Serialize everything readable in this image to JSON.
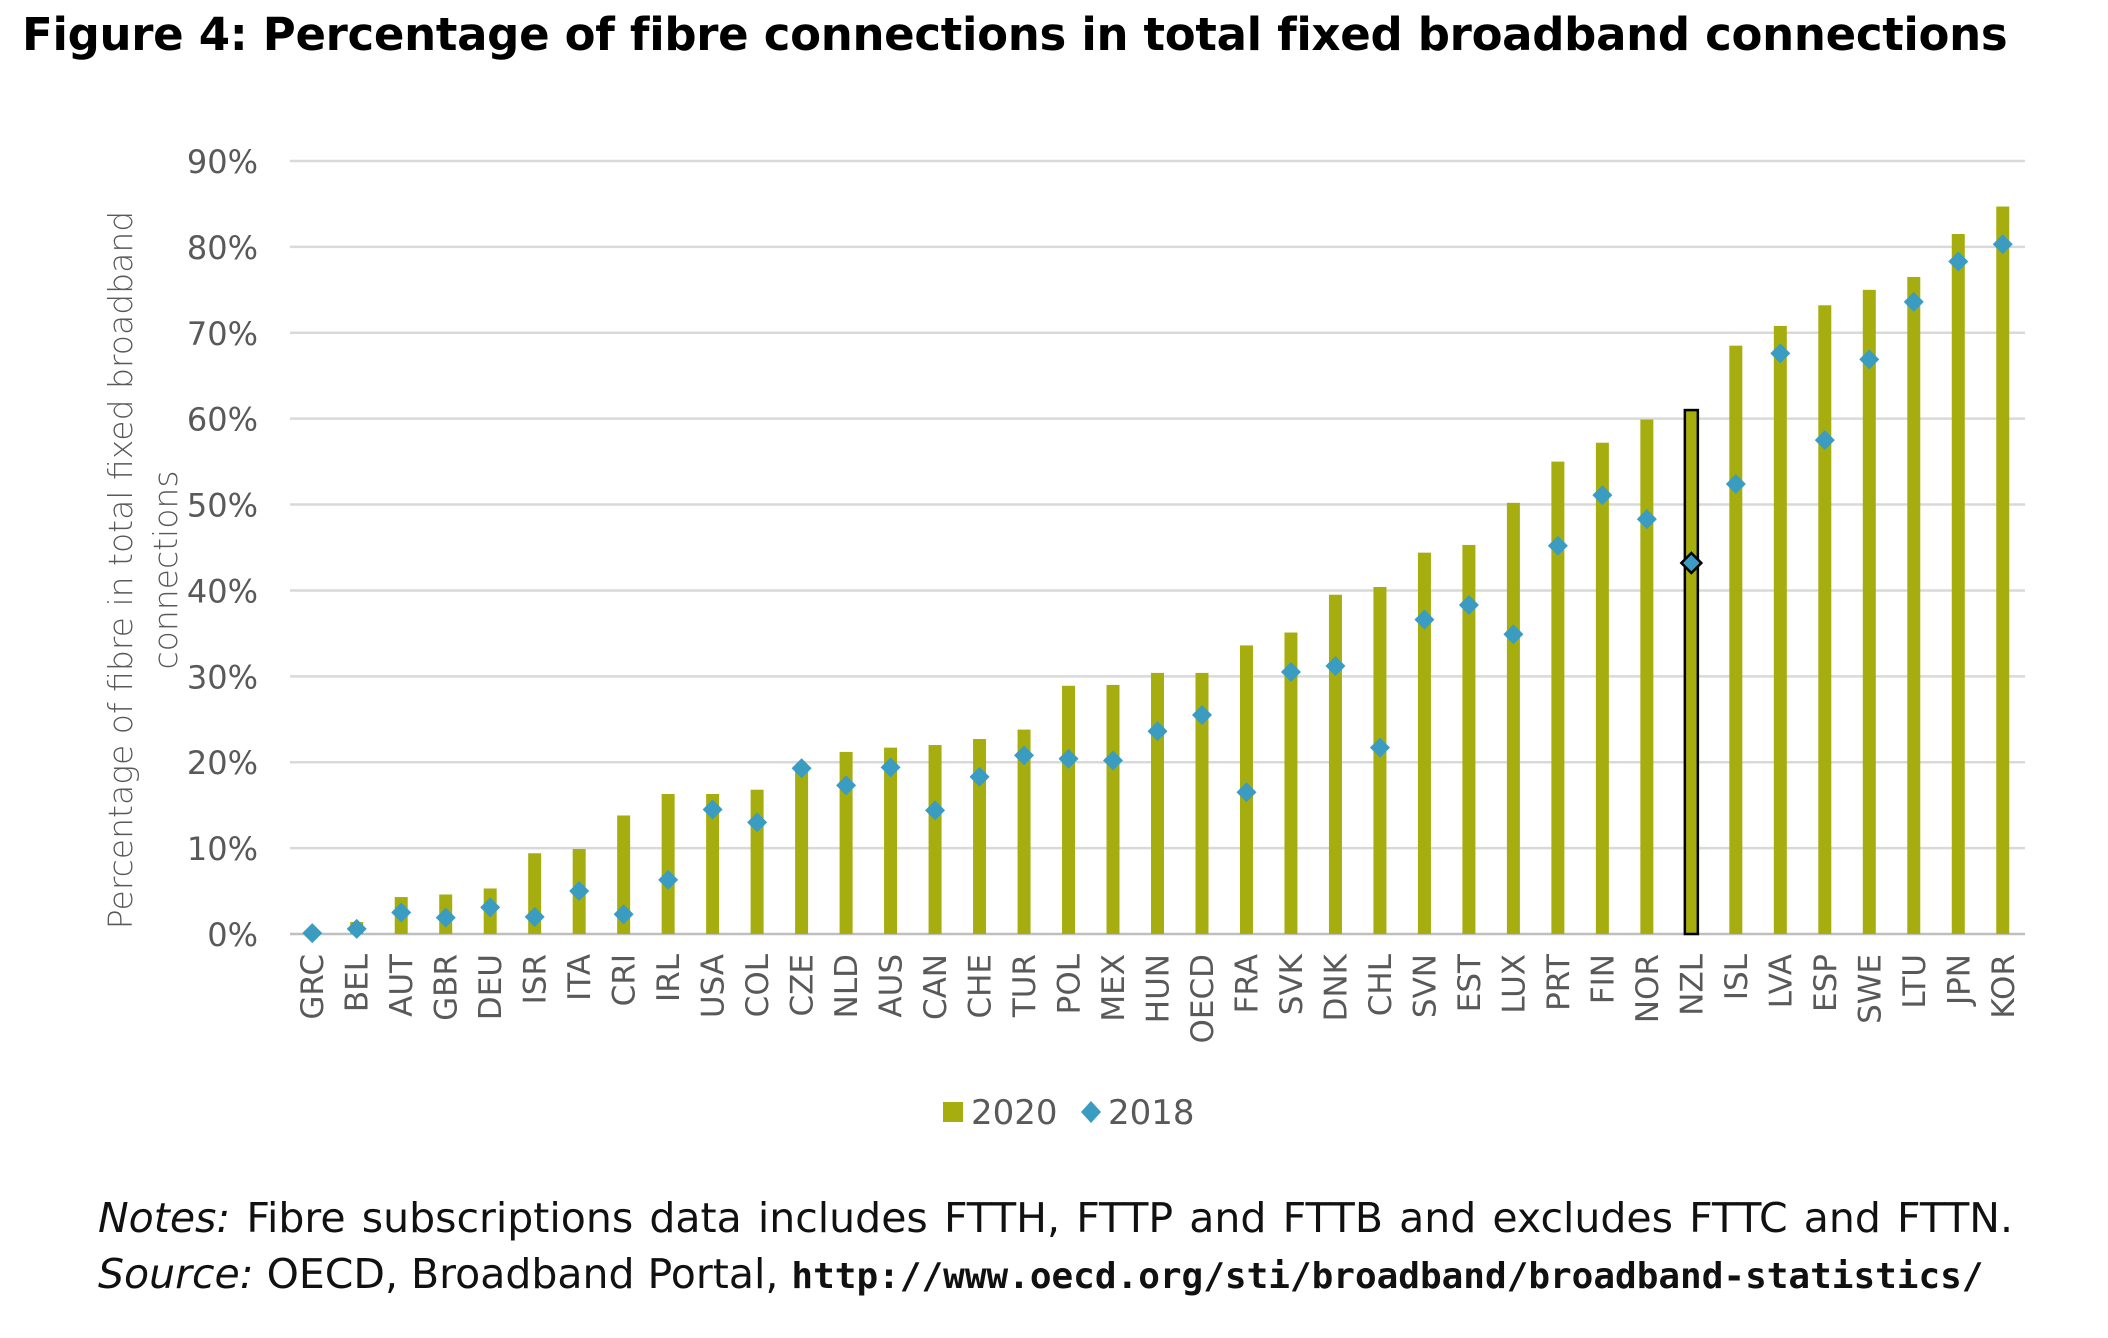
{
  "title": "Figure 4: Percentage of fibre connections in total fixed broadband connections",
  "chart_data": {
    "type": "bar",
    "title": "Figure 4: Percentage of fibre connections in total fixed broadband connections",
    "ylabel_line1": "Percentage of fibre in total fixed broadband",
    "ylabel_line2": "connections",
    "xlabel": "",
    "ylim": [
      0,
      90
    ],
    "yticks": [
      0,
      10,
      20,
      30,
      40,
      50,
      60,
      70,
      80,
      90
    ],
    "ytick_labels": [
      "0%",
      "10%",
      "20%",
      "30%",
      "40%",
      "50%",
      "60%",
      "70%",
      "80%",
      "90%"
    ],
    "grid": true,
    "legend_position": "bottom-center",
    "highlight_category": "NZL",
    "categories": [
      "GRC",
      "BEL",
      "AUT",
      "GBR",
      "DEU",
      "ISR",
      "ITA",
      "CRI",
      "IRL",
      "USA",
      "COL",
      "CZE",
      "NLD",
      "AUS",
      "CAN",
      "CHE",
      "TUR",
      "POL",
      "MEX",
      "HUN",
      "OECD",
      "FRA",
      "SVK",
      "DNK",
      "CHL",
      "SVN",
      "EST",
      "LUX",
      "PRT",
      "FIN",
      "NOR",
      "NZL",
      "ISL",
      "LVA",
      "ESP",
      "SWE",
      "LTU",
      "JPN",
      "KOR"
    ],
    "series": [
      {
        "name": "2020",
        "type": "bar",
        "color": "#a6ad0f",
        "values": [
          0.3,
          1.4,
          4.3,
          4.6,
          5.3,
          9.4,
          9.9,
          13.8,
          16.3,
          16.3,
          16.8,
          19.3,
          21.2,
          21.7,
          22.0,
          22.7,
          23.8,
          28.9,
          29.0,
          30.4,
          30.4,
          33.6,
          35.1,
          39.5,
          40.4,
          44.4,
          45.3,
          50.2,
          55.0,
          57.2,
          59.9,
          61.0,
          68.5,
          70.8,
          73.2,
          75.0,
          76.5,
          81.5,
          84.7
        ]
      },
      {
        "name": "2018",
        "type": "scatter",
        "marker": "diamond",
        "color": "#3a9cc0",
        "values": [
          0.1,
          0.6,
          2.5,
          1.9,
          3.1,
          2.0,
          5.0,
          2.3,
          6.3,
          14.5,
          13.0,
          19.3,
          17.3,
          19.4,
          14.4,
          18.3,
          20.8,
          20.4,
          20.2,
          23.6,
          25.5,
          16.5,
          30.5,
          31.2,
          21.7,
          36.6,
          38.3,
          34.9,
          45.2,
          51.1,
          48.3,
          43.2,
          52.4,
          67.6,
          57.5,
          66.9,
          73.6,
          78.3,
          80.3
        ]
      }
    ]
  },
  "legend": {
    "items": [
      {
        "label": "2020"
      },
      {
        "label": "2018"
      }
    ]
  },
  "notes": {
    "notes_label": "Notes:",
    "notes_text": "Fibre subscriptions data includes FTTH, FTTP and FTTB and excludes FTTC and FTTN.",
    "source_label": "Source:",
    "source_text": "OECD, Broadband Portal,",
    "url": "http://www.oecd.org/sti/broadband/broadband-statistics/"
  }
}
